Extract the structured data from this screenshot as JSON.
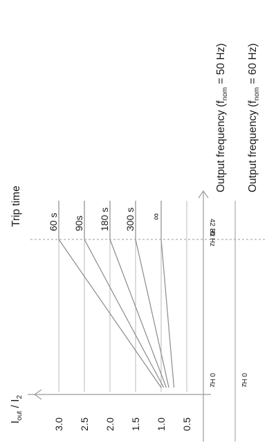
{
  "chart_data": {
    "type": "line",
    "orientation": "rotated-90-ccw",
    "title": "",
    "ylabel": {
      "main": "I",
      "sub1": "out",
      "sep": " / I",
      "sub2": "2"
    },
    "yticks": [
      "3.0",
      "2.5",
      "2.0",
      "1.5",
      "1.0",
      "0.5"
    ],
    "ylim": [
      0.5,
      3.0
    ],
    "xaxis_label_top": {
      "main": "Output frequency (f",
      "sub": "nom",
      "rest": " = 50 Hz)"
    },
    "xaxis_label_bottom": {
      "main": "Output frequency (f",
      "sub": "nom",
      "rest": " = 60 Hz)"
    },
    "xtick_start_top": "0 Hz",
    "xtick_start_bottom": "0 Hz",
    "xtick_break_top": "35 Hz",
    "xtick_break_bottom": "42 Hz",
    "trip_time_label": "Trip time",
    "series": [
      {
        "name": "60 s",
        "start": 1.0,
        "end": 3.0
      },
      {
        "name": "90s",
        "start": 0.95,
        "end": 2.5
      },
      {
        "name": "180 s",
        "start": 0.9,
        "end": 2.0
      },
      {
        "name": "300 s",
        "start": 0.85,
        "end": 1.5
      },
      {
        "name": "∞",
        "start": 0.75,
        "end": 1.0
      }
    ],
    "grid": true
  }
}
